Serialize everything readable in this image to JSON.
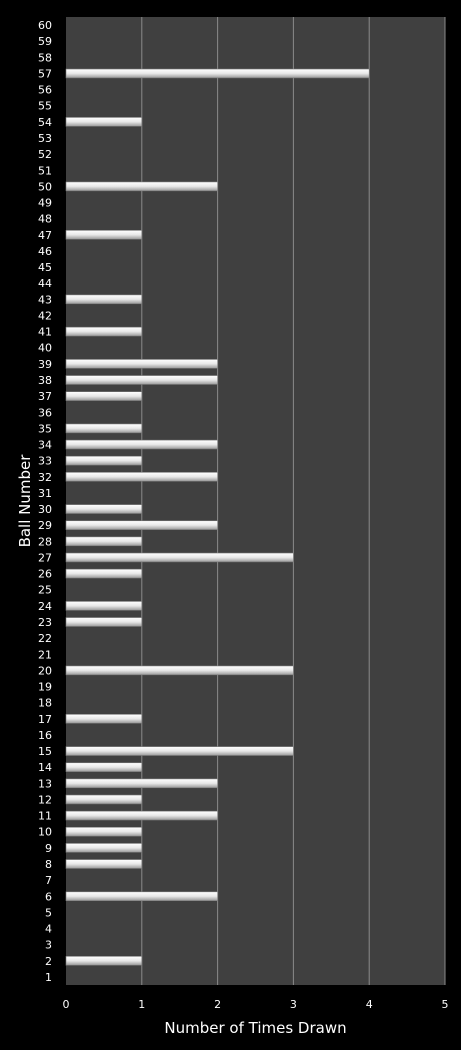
{
  "chart_data": {
    "type": "bar",
    "orientation": "horizontal",
    "title": "",
    "xlabel": "Number of Times Drawn",
    "ylabel": "Ball Number",
    "xlim": [
      0,
      5
    ],
    "x_ticks": [
      "0",
      "1",
      "2",
      "3",
      "4",
      "5"
    ],
    "grid": "vertical",
    "legend": "none",
    "categories": [
      "1",
      "2",
      "3",
      "4",
      "5",
      "6",
      "7",
      "8",
      "9",
      "10",
      "11",
      "12",
      "13",
      "14",
      "15",
      "16",
      "17",
      "18",
      "19",
      "20",
      "21",
      "22",
      "23",
      "24",
      "25",
      "26",
      "27",
      "28",
      "29",
      "30",
      "31",
      "32",
      "33",
      "34",
      "35",
      "36",
      "37",
      "38",
      "39",
      "40",
      "41",
      "42",
      "43",
      "44",
      "45",
      "46",
      "47",
      "48",
      "49",
      "50",
      "51",
      "52",
      "53",
      "54",
      "55",
      "56",
      "57",
      "58",
      "59",
      "60"
    ],
    "values": [
      0,
      1,
      0,
      0,
      0,
      2,
      0,
      1,
      1,
      1,
      2,
      1,
      2,
      1,
      3,
      0,
      1,
      0,
      0,
      3,
      0,
      0,
      1,
      1,
      0,
      1,
      3,
      1,
      2,
      1,
      0,
      2,
      1,
      2,
      1,
      0,
      1,
      2,
      2,
      0,
      1,
      0,
      1,
      0,
      0,
      0,
      1,
      0,
      0,
      2,
      0,
      0,
      0,
      1,
      0,
      0,
      4,
      0,
      0,
      0
    ],
    "colors": {
      "background": "#000000",
      "plot_area": "#404040",
      "gridline": "#8a8a8a",
      "bar": "#e8e8e8",
      "text": "#ffffff"
    }
  }
}
